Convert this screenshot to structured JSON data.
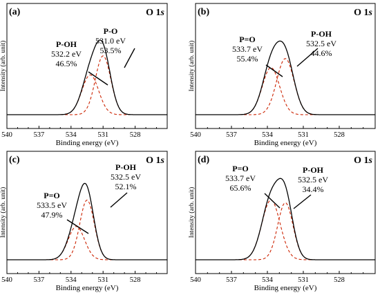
{
  "chart_data": [
    {
      "type": "line",
      "panel": "(a)",
      "core_level": "O 1",
      "core_orbital": "s",
      "xlabel": "Binding energy (eV)",
      "ylabel": "Intensity (arb. unit)",
      "xlim": [
        540,
        525
      ],
      "xticks": [
        540,
        537,
        534,
        531,
        528
      ],
      "envelope": {
        "color": "#000000",
        "style": "solid"
      },
      "component_color": "#cc2200",
      "components": [
        {
          "name": "P-O",
          "center": 531.0,
          "fwhm": 1.7,
          "amplitude": 0.65,
          "be_label": "531.0 eV",
          "pct_label": "53.5%"
        },
        {
          "name": "P-OH",
          "center": 532.2,
          "fwhm": 1.85,
          "amplitude": 0.44,
          "be_label": "532.2 eV",
          "pct_label": "46.5%"
        }
      ]
    },
    {
      "type": "line",
      "panel": "(b)",
      "core_level": "O 1",
      "core_orbital": "s",
      "xlabel": "Binding energy (eV)",
      "ylabel": "Intensity (arb. unit)",
      "xlim": [
        540,
        525
      ],
      "xticks": [
        540,
        537,
        534,
        531,
        528
      ],
      "envelope": {
        "color": "#000000",
        "style": "solid"
      },
      "component_color": "#cc2200",
      "components": [
        {
          "name": "P-OH",
          "center": 532.5,
          "fwhm": 1.7,
          "amplitude": 0.62,
          "be_label": "532.5 eV",
          "pct_label": "44.6%"
        },
        {
          "name": "P=O",
          "center": 533.7,
          "fwhm": 1.7,
          "amplitude": 0.52,
          "be_label": "533.7 eV",
          "pct_label": "55.4%"
        }
      ]
    },
    {
      "type": "line",
      "panel": "(c)",
      "core_level": "O 1",
      "core_orbital": "s",
      "xlabel": "Binding energy (eV)",
      "ylabel": "Intensity (arb. unit)",
      "xlim": [
        540,
        525
      ],
      "xticks": [
        540,
        537,
        534,
        531,
        528
      ],
      "envelope": {
        "color": "#000000",
        "style": "solid"
      },
      "component_color": "#cc2200",
      "components": [
        {
          "name": "P-OH",
          "center": 532.5,
          "fwhm": 1.6,
          "amplitude": 0.68,
          "be_label": "532.5 eV",
          "pct_label": "52.1%"
        },
        {
          "name": "P=O",
          "center": 533.5,
          "fwhm": 1.8,
          "amplitude": 0.38,
          "be_label": "533.5 eV",
          "pct_label": "47.9%"
        }
      ]
    },
    {
      "type": "line",
      "panel": "(d)",
      "core_level": "O 1",
      "core_orbital": "s",
      "xlabel": "Binding energy (eV)",
      "ylabel": "Intensity (arb. unit)",
      "xlim": [
        540,
        525
      ],
      "xticks": [
        540,
        537,
        534,
        531,
        528
      ],
      "envelope": {
        "color": "#000000",
        "style": "solid"
      },
      "component_color": "#cc2200",
      "components": [
        {
          "name": "P-OH",
          "center": 532.5,
          "fwhm": 1.5,
          "amplitude": 0.65,
          "be_label": "532.5 eV",
          "pct_label": "34.4%"
        },
        {
          "name": "P=O",
          "center": 533.7,
          "fwhm": 1.8,
          "amplitude": 0.68,
          "be_label": "533.7 eV",
          "pct_label": "65.6%"
        }
      ]
    }
  ]
}
